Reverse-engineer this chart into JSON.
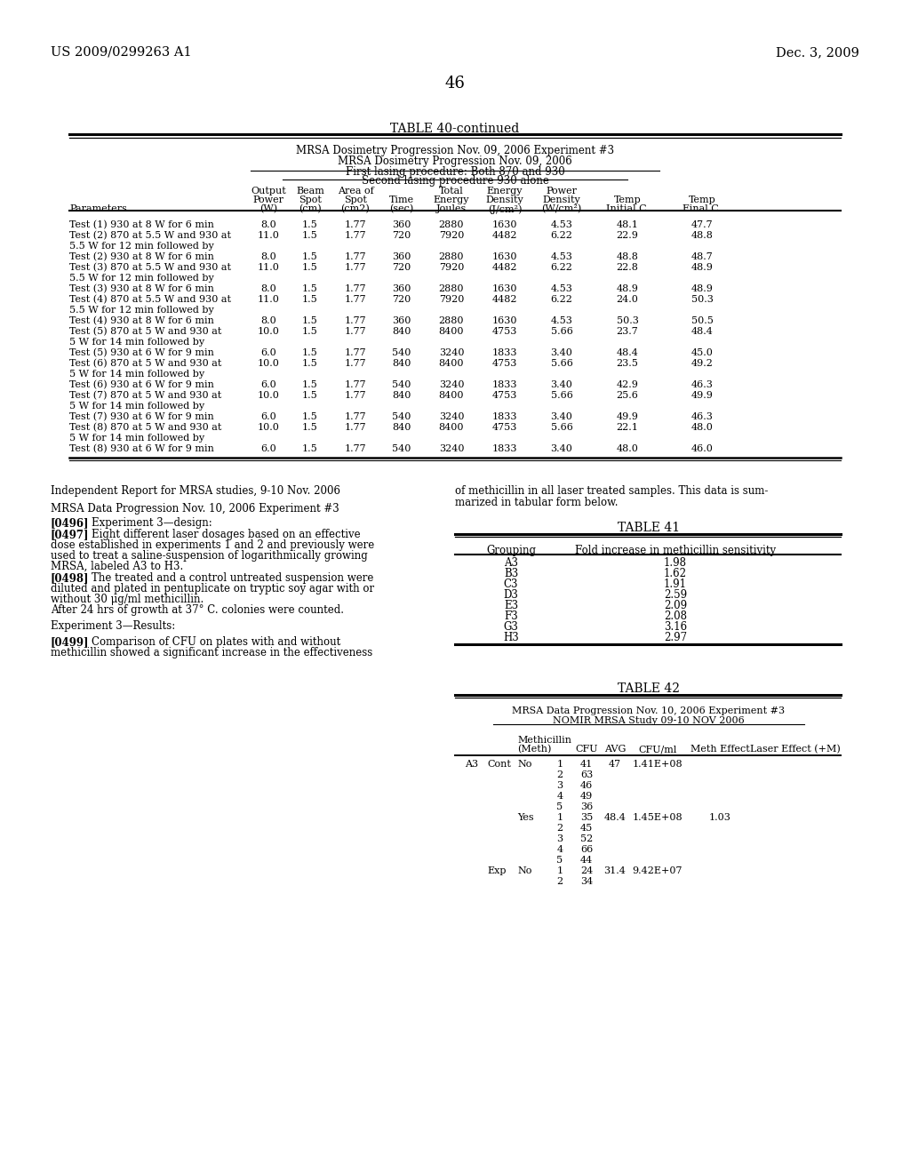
{
  "header_left": "US 2009/0299263 A1",
  "header_right": "Dec. 3, 2009",
  "page_number": "46",
  "table40_title": "TABLE 40-continued",
  "table40_subtitle1": "MRSA Dosimetry Progression Nov. 09, 2006 Experiment #3",
  "table40_subtitle2": "MRSA Dosimetry Progression Nov. 09, 2006",
  "table40_subtitle3": "First lasing procedure: Both 870 and 930",
  "table40_subtitle4": "Second lasing procedure 930 alone",
  "table40_rows": [
    [
      "Test (1) 930 at 8 W for 6 min",
      "8.0",
      "1.5",
      "1.77",
      "360",
      "2880",
      "1630",
      "4.53",
      "48.1",
      "47.7"
    ],
    [
      "Test (2) 870 at 5.5 W and 930 at",
      "11.0",
      "1.5",
      "1.77",
      "720",
      "7920",
      "4482",
      "6.22",
      "22.9",
      "48.8"
    ],
    [
      "5.5 W for 12 min followed by",
      "",
      "",
      "",
      "",
      "",
      "",
      "",
      "",
      ""
    ],
    [
      "Test (2) 930 at 8 W for 6 min",
      "8.0",
      "1.5",
      "1.77",
      "360",
      "2880",
      "1630",
      "4.53",
      "48.8",
      "48.7"
    ],
    [
      "Test (3) 870 at 5.5 W and 930 at",
      "11.0",
      "1.5",
      "1.77",
      "720",
      "7920",
      "4482",
      "6.22",
      "22.8",
      "48.9"
    ],
    [
      "5.5 W for 12 min followed by",
      "",
      "",
      "",
      "",
      "",
      "",
      "",
      "",
      ""
    ],
    [
      "Test (3) 930 at 8 W for 6 min",
      "8.0",
      "1.5",
      "1.77",
      "360",
      "2880",
      "1630",
      "4.53",
      "48.9",
      "48.9"
    ],
    [
      "Test (4) 870 at 5.5 W and 930 at",
      "11.0",
      "1.5",
      "1.77",
      "720",
      "7920",
      "4482",
      "6.22",
      "24.0",
      "50.3"
    ],
    [
      "5.5 W for 12 min followed by",
      "",
      "",
      "",
      "",
      "",
      "",
      "",
      "",
      ""
    ],
    [
      "Test (4) 930 at 8 W for 6 min",
      "8.0",
      "1.5",
      "1.77",
      "360",
      "2880",
      "1630",
      "4.53",
      "50.3",
      "50.5"
    ],
    [
      "Test (5) 870 at 5 W and 930 at",
      "10.0",
      "1.5",
      "1.77",
      "840",
      "8400",
      "4753",
      "5.66",
      "23.7",
      "48.4"
    ],
    [
      "5 W for 14 min followed by",
      "",
      "",
      "",
      "",
      "",
      "",
      "",
      "",
      ""
    ],
    [
      "Test (5) 930 at 6 W for 9 min",
      "6.0",
      "1.5",
      "1.77",
      "540",
      "3240",
      "1833",
      "3.40",
      "48.4",
      "45.0"
    ],
    [
      "Test (6) 870 at 5 W and 930 at",
      "10.0",
      "1.5",
      "1.77",
      "840",
      "8400",
      "4753",
      "5.66",
      "23.5",
      "49.2"
    ],
    [
      "5 W for 14 min followed by",
      "",
      "",
      "",
      "",
      "",
      "",
      "",
      "",
      ""
    ],
    [
      "Test (6) 930 at 6 W for 9 min",
      "6.0",
      "1.5",
      "1.77",
      "540",
      "3240",
      "1833",
      "3.40",
      "42.9",
      "46.3"
    ],
    [
      "Test (7) 870 at 5 W and 930 at",
      "10.0",
      "1.5",
      "1.77",
      "840",
      "8400",
      "4753",
      "5.66",
      "25.6",
      "49.9"
    ],
    [
      "5 W for 14 min followed by",
      "",
      "",
      "",
      "",
      "",
      "",
      "",
      "",
      ""
    ],
    [
      "Test (7) 930 at 6 W for 9 min",
      "6.0",
      "1.5",
      "1.77",
      "540",
      "3240",
      "1833",
      "3.40",
      "49.9",
      "46.3"
    ],
    [
      "Test (8) 870 at 5 W and 930 at",
      "10.0",
      "1.5",
      "1.77",
      "840",
      "8400",
      "4753",
      "5.66",
      "22.1",
      "48.0"
    ],
    [
      "5 W for 14 min followed by",
      "",
      "",
      "",
      "",
      "",
      "",
      "",
      "",
      ""
    ],
    [
      "Test (8) 930 at 6 W for 9 min",
      "6.0",
      "1.5",
      "1.77",
      "540",
      "3240",
      "1833",
      "3.40",
      "48.0",
      "46.0"
    ]
  ],
  "table41_rows": [
    [
      "A3",
      "1.98"
    ],
    [
      "B3",
      "1.62"
    ],
    [
      "C3",
      "1.91"
    ],
    [
      "D3",
      "2.59"
    ],
    [
      "E3",
      "2.09"
    ],
    [
      "F3",
      "2.08"
    ],
    [
      "G3",
      "3.16"
    ],
    [
      "H3",
      "2.97"
    ]
  ],
  "table42_subtitle1": "MRSA Data Progression Nov. 10, 2006 Experiment #3",
  "table42_subtitle2": "NOMIR MRSA Study 09-10 NOV 2006",
  "table42_rows": [
    [
      "A3",
      "Cont",
      "No",
      "1",
      "41",
      "47",
      "1.41E+08",
      "",
      ""
    ],
    [
      "",
      "",
      "",
      "2",
      "63",
      "",
      "",
      "",
      ""
    ],
    [
      "",
      "",
      "",
      "3",
      "46",
      "",
      "",
      "",
      ""
    ],
    [
      "",
      "",
      "",
      "4",
      "49",
      "",
      "",
      "",
      ""
    ],
    [
      "",
      "",
      "",
      "5",
      "36",
      "",
      "",
      "",
      ""
    ],
    [
      "",
      "",
      "Yes",
      "1",
      "35",
      "48.4",
      "1.45E+08",
      "1.03",
      ""
    ],
    [
      "",
      "",
      "",
      "2",
      "45",
      "",
      "",
      "",
      ""
    ],
    [
      "",
      "",
      "",
      "3",
      "52",
      "",
      "",
      "",
      ""
    ],
    [
      "",
      "",
      "",
      "4",
      "66",
      "",
      "",
      "",
      ""
    ],
    [
      "",
      "",
      "",
      "5",
      "44",
      "",
      "",
      "",
      ""
    ],
    [
      "",
      "Exp",
      "No",
      "1",
      "24",
      "31.4",
      "9.42E+07",
      "",
      ""
    ],
    [
      "",
      "",
      "",
      "2",
      "34",
      "",
      "",
      "",
      ""
    ]
  ],
  "bg_color": "#ffffff",
  "text_color": "#000000"
}
